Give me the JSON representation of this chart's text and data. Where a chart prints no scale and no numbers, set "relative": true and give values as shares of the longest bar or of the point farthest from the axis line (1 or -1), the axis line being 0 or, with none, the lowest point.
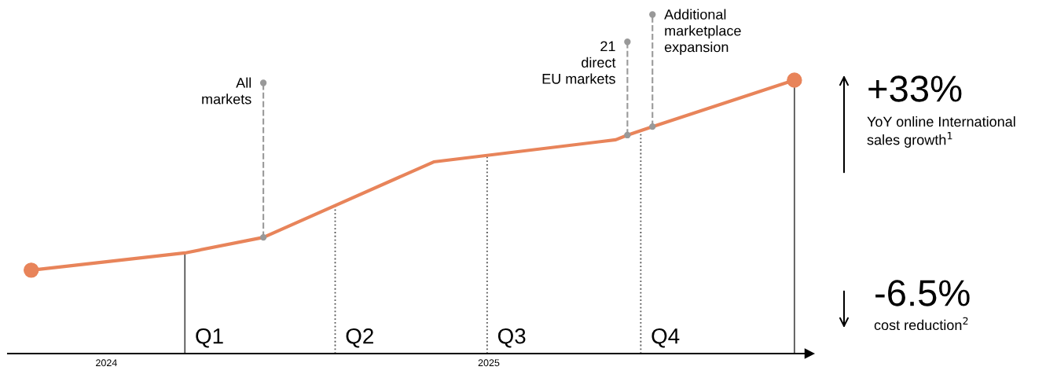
{
  "chart_data": {
    "type": "line",
    "relative": true,
    "x": [
      "2024-10-01",
      "2025-01-01",
      "2025-02-17",
      "2025-05-30",
      "2025-09-16",
      "2025-09-23",
      "2025-10-08",
      "2026-01-01"
    ],
    "xlim": [
      "2024-09-17",
      "2026-01-10"
    ],
    "xticks": [
      {
        "value": "2024-11-15",
        "label": "2024"
      },
      {
        "value": "2025-07-02",
        "label": "2025"
      }
    ],
    "series": [
      {
        "color": "#e8845a",
        "values": [
          0.305,
          0.368,
          0.425,
          0.701,
          0.782,
          0.799,
          0.83,
          1.0
        ]
      }
    ],
    "marker": "circle",
    "line_style": "solid",
    "grid": false,
    "ref_lines": [
      {
        "axis": "x",
        "value": "2025-01-01",
        "label": "Q1",
        "color": "#555555",
        "line_style": "solid"
      },
      {
        "axis": "x",
        "value": "2025-04-01",
        "label": "Q2",
        "color": "#555555",
        "line_style": "dotted"
      },
      {
        "axis": "x",
        "value": "2025-07-01",
        "label": "Q3",
        "color": "#555555",
        "line_style": "dotted"
      },
      {
        "axis": "x",
        "value": "2025-10-01",
        "label": "Q4",
        "color": "#555555",
        "line_style": "dotted"
      },
      {
        "axis": "x",
        "value": "2026-01-01",
        "color": "#555555",
        "line_style": "solid"
      }
    ],
    "annotations": [
      {
        "text": "All\nmarkets",
        "x": "2025-02-17",
        "y": 0.425
      },
      {
        "text": "21\ndirect\nEU markets",
        "x": "2025-09-23",
        "y": 0.799
      },
      {
        "text": "Additional\nmarketplace\nexpansion",
        "x": "2025-10-08",
        "y": 0.83
      },
      "+33%",
      "YoY online International\nsales growth$^{1}$",
      "-6.5%",
      "cost reduction$^{2}$"
    ]
  }
}
